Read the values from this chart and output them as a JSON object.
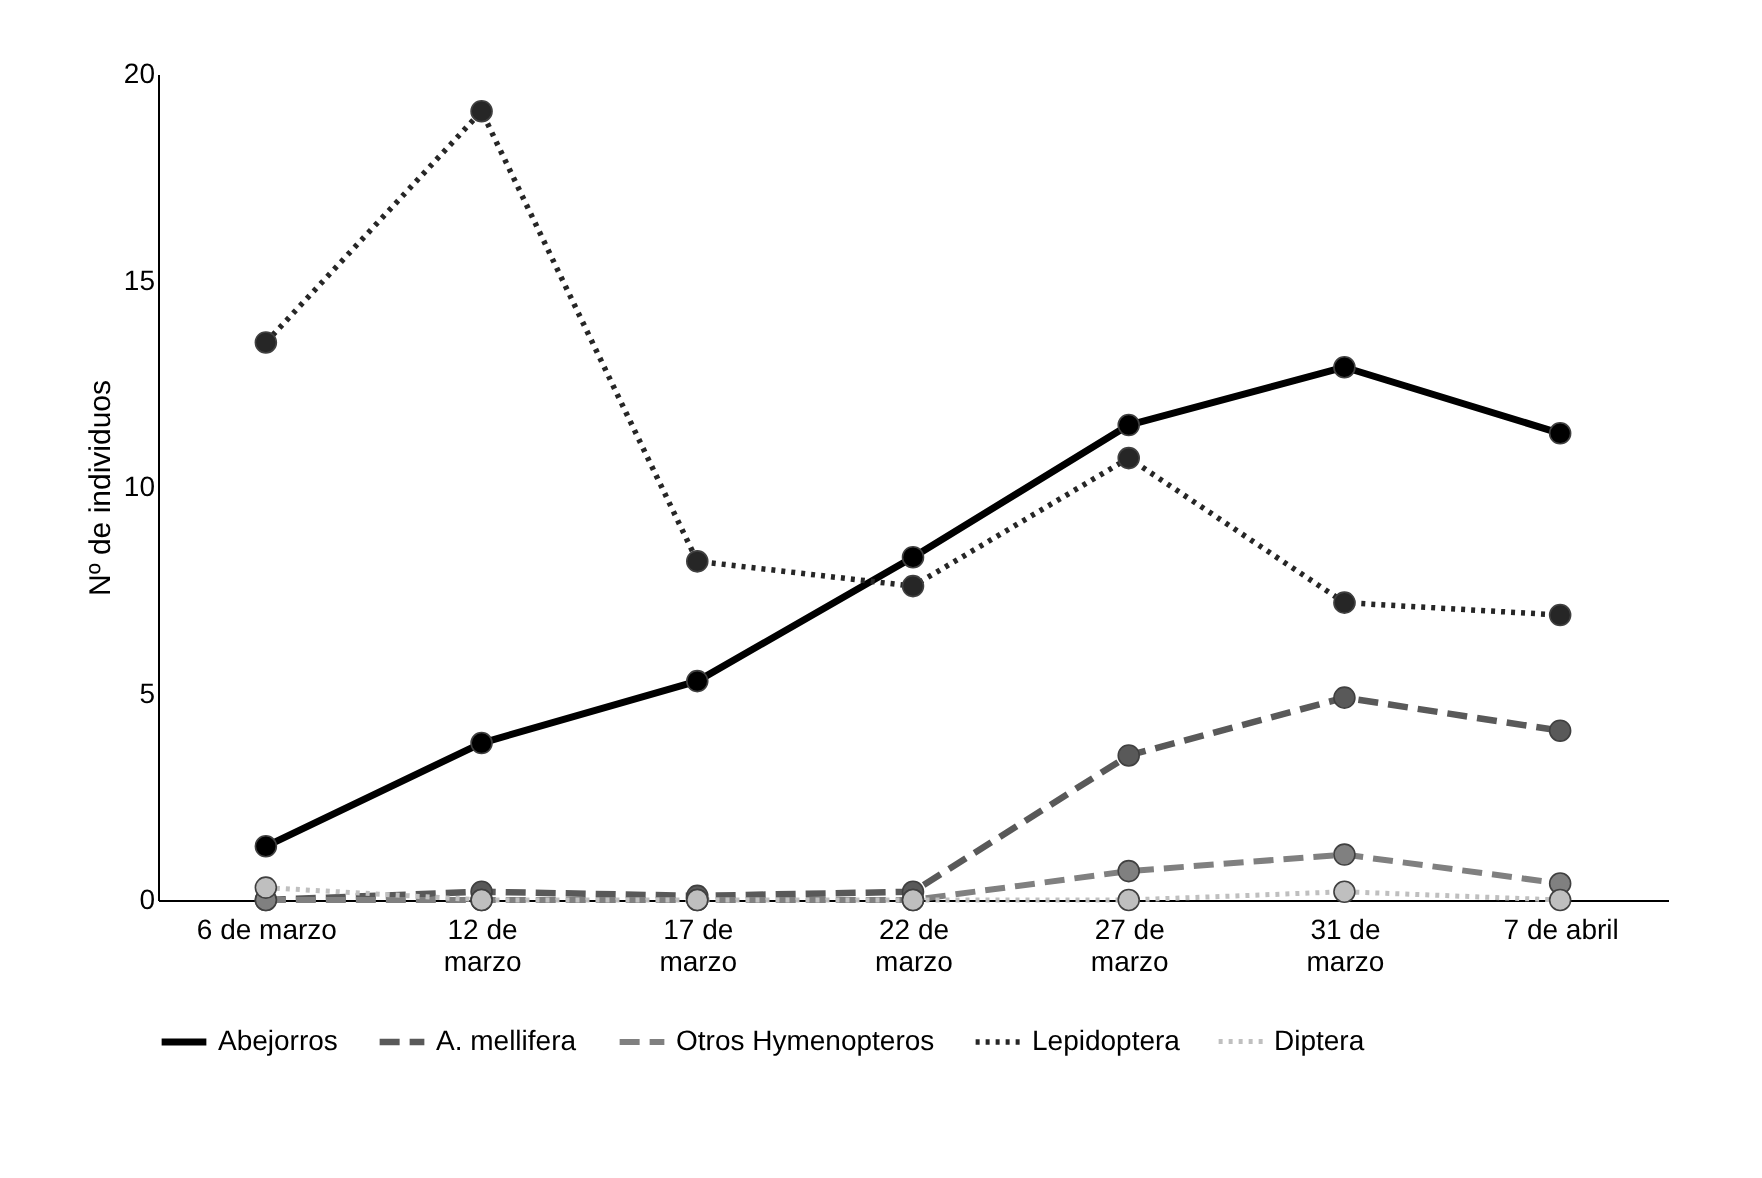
{
  "chart_data": {
    "type": "line",
    "ylabel": "Nº de individuos",
    "categories": [
      "6 de marzo",
      "12 de marzo",
      "17 de marzo",
      "22 de marzo",
      "27 de marzo",
      "31 de marzo",
      "7 de abril"
    ],
    "series": [
      {
        "name": "Abejorros",
        "color": "#000000",
        "line_style": "solid",
        "values": [
          1.3,
          3.8,
          5.3,
          8.3,
          11.5,
          12.9,
          11.3
        ]
      },
      {
        "name": "A. mellifera",
        "color": "#595959",
        "line_style": "dashed",
        "values": [
          0.0,
          0.2,
          0.1,
          0.2,
          3.5,
          4.9,
          4.1
        ]
      },
      {
        "name": "Otros Hymenopteros",
        "color": "#808080",
        "line_style": "dashed",
        "values": [
          0,
          0,
          0,
          0,
          0.7,
          1.1,
          0.4
        ]
      },
      {
        "name": "Lepidoptera",
        "color": "#262626",
        "line_style": "dotted",
        "values": [
          13.5,
          19.1,
          8.2,
          7.6,
          10.7,
          7.2,
          6.9
        ]
      },
      {
        "name": "Diptera",
        "color": "#bfbfbf",
        "line_style": "dotted",
        "values": [
          0.3,
          0,
          0,
          0,
          0,
          0.2,
          0
        ]
      }
    ],
    "ylim": [
      0,
      20
    ],
    "yticks": [
      0,
      5,
      10,
      15,
      20
    ],
    "grid": false,
    "legend": "bottom",
    "marker": "circle"
  }
}
